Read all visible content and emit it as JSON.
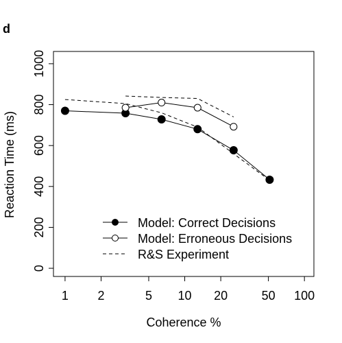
{
  "panel_label": "d",
  "chart_data": {
    "type": "line",
    "xlabel": "Coherence %",
    "ylabel": "Reaction Time (ms)",
    "x_scale": "log",
    "xlim": [
      0.8,
      120
    ],
    "ylim": [
      -40,
      1060
    ],
    "x_ticks": [
      1,
      2,
      5,
      10,
      20,
      50,
      100
    ],
    "x_tick_labels": [
      "1",
      "2",
      "5",
      "10",
      "20",
      "50",
      "100"
    ],
    "y_ticks": [
      0,
      200,
      400,
      600,
      800,
      1000
    ],
    "y_tick_labels": [
      "0",
      "200",
      "400",
      "600",
      "800",
      "1000"
    ],
    "grid": false,
    "legend_position": "bottom-center",
    "series": [
      {
        "name": "Model: Correct Decisions",
        "style": "solid-filled-circle",
        "x": [
          1,
          3.2,
          6.4,
          12.8,
          25.6,
          51.2
        ],
        "y": [
          770,
          758,
          728,
          680,
          577,
          433
        ]
      },
      {
        "name": "Model: Erroneous Decisions",
        "style": "solid-open-circle",
        "x": [
          3.2,
          6.4,
          12.8,
          25.6
        ],
        "y": [
          785,
          810,
          785,
          692
        ]
      },
      {
        "name": "R&S Experiment",
        "style": "dashed",
        "x": [
          1,
          3.2,
          6.4,
          12.8,
          25.6,
          51.2
        ],
        "y": [
          825,
          805,
          760,
          690,
          560,
          430
        ]
      },
      {
        "name": "R&S Experiment (errors)",
        "style": "dashed",
        "in_legend": false,
        "x": [
          3.2,
          6.4,
          12.8,
          25.6
        ],
        "y": [
          842,
          835,
          830,
          740
        ]
      }
    ]
  }
}
